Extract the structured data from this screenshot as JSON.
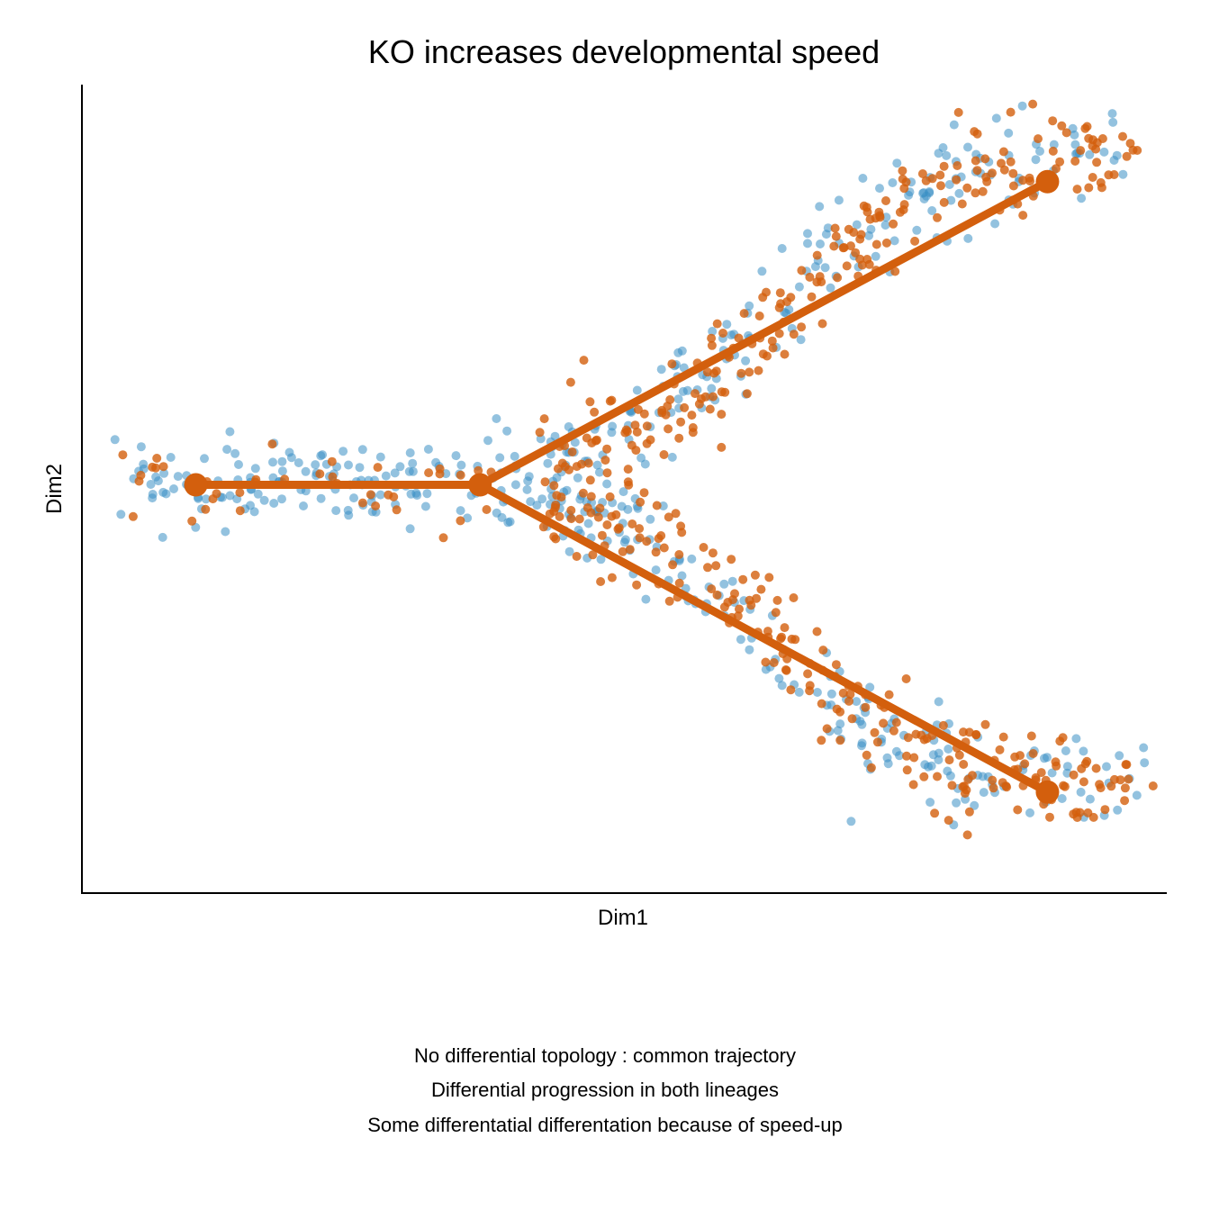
{
  "chart_data": {
    "type": "scatter",
    "title": "KO increases developmental speed",
    "xlabel": "Dim1",
    "ylabel": "Dim2",
    "x_ticks": "none",
    "y_ticks": "none",
    "grid": false,
    "legend": "none",
    "xlim": [
      0,
      100
    ],
    "ylim": [
      0,
      100
    ],
    "series": [
      {
        "color": "#3b8fc4",
        "point_opacity": 0.55,
        "clouds": [
          {
            "x0": 4.5,
            "x1": 38.0,
            "y0": 50.5,
            "y1": 50.5,
            "spread": 2.6,
            "count": 130
          },
          {
            "x0": 38.0,
            "x1": 97.0,
            "y0": 50.5,
            "y1": 92.0,
            "spread": 3.2,
            "count": 190,
            "shape": "sigmoid"
          },
          {
            "x0": 38.0,
            "x1": 97.0,
            "y0": 50.5,
            "y1": 12.5,
            "spread": 3.2,
            "count": 190,
            "shape": "sigmoid"
          }
        ]
      },
      {
        "color": "#d35f0d",
        "point_opacity": 0.8,
        "clouds": [
          {
            "x0": 5.0,
            "x1": 38.0,
            "y0": 50.5,
            "y1": 50.5,
            "spread": 2.5,
            "count": 40
          },
          {
            "x0": 43.0,
            "x1": 97.0,
            "y0": 53.0,
            "y1": 92.0,
            "spread": 3.0,
            "count": 220,
            "shape": "sigmoid"
          },
          {
            "x0": 43.0,
            "x1": 97.0,
            "y0": 48.0,
            "y1": 12.5,
            "spread": 3.0,
            "count": 220,
            "shape": "sigmoid"
          }
        ]
      }
    ],
    "trajectory": {
      "color": "#d35f0d",
      "milestones": [
        {
          "id": "start",
          "x": 10.5,
          "y": 50.5
        },
        {
          "id": "branch",
          "x": 36.7,
          "y": 50.5
        },
        {
          "id": "end-up",
          "x": 89.0,
          "y": 88.0
        },
        {
          "id": "end-down",
          "x": 89.0,
          "y": 12.5
        }
      ],
      "edges": [
        [
          "start",
          "branch"
        ],
        [
          "branch",
          "end-up"
        ],
        [
          "branch",
          "end-down"
        ]
      ]
    }
  },
  "captions": [
    "No differential topology : common trajectory",
    "Differential progression in both lineages",
    "Some differentatial differentation because of speed-up"
  ]
}
